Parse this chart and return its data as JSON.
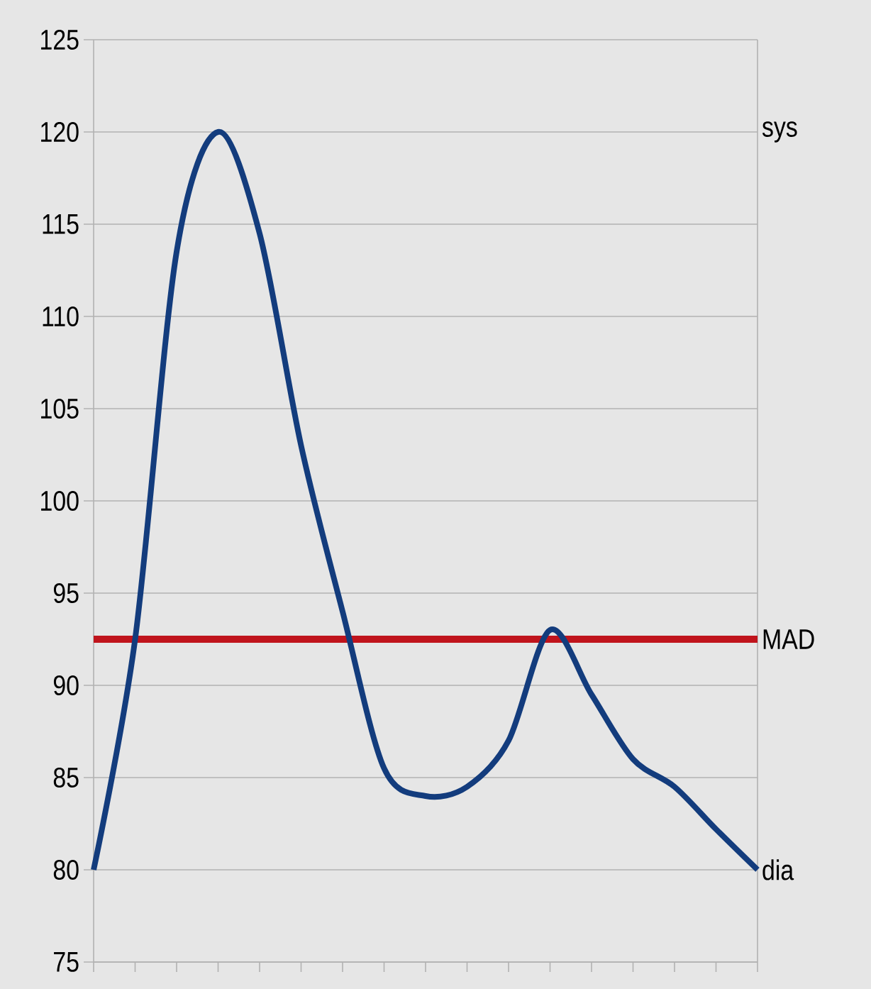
{
  "chart_data": {
    "type": "line",
    "categories": [
      null,
      null,
      null,
      null,
      null,
      null,
      null,
      null,
      null,
      null,
      null,
      null,
      null,
      null,
      null,
      null,
      null
    ],
    "series": [
      {
        "color": "#133c7d",
        "values": [
          80,
          92.5,
          113.5,
          120,
          114.5,
          103,
          94,
          85.5,
          84,
          84.5,
          87,
          93,
          89.5,
          86,
          84.5,
          82.2,
          80
        ]
      }
    ],
    "ylim": [
      75,
      125
    ],
    "yticks": [
      75,
      80,
      85,
      90,
      95,
      100,
      105,
      110,
      115,
      120,
      125
    ],
    "grid": "y",
    "tick_labels": "y",
    "marker": "none",
    "line_style": "solid",
    "ref_lines": [
      {
        "axis": "y",
        "value": 92.5,
        "label": "MAD",
        "color": "#c0141c"
      }
    ],
    "annotations": [
      "sys",
      "dia"
    ]
  }
}
